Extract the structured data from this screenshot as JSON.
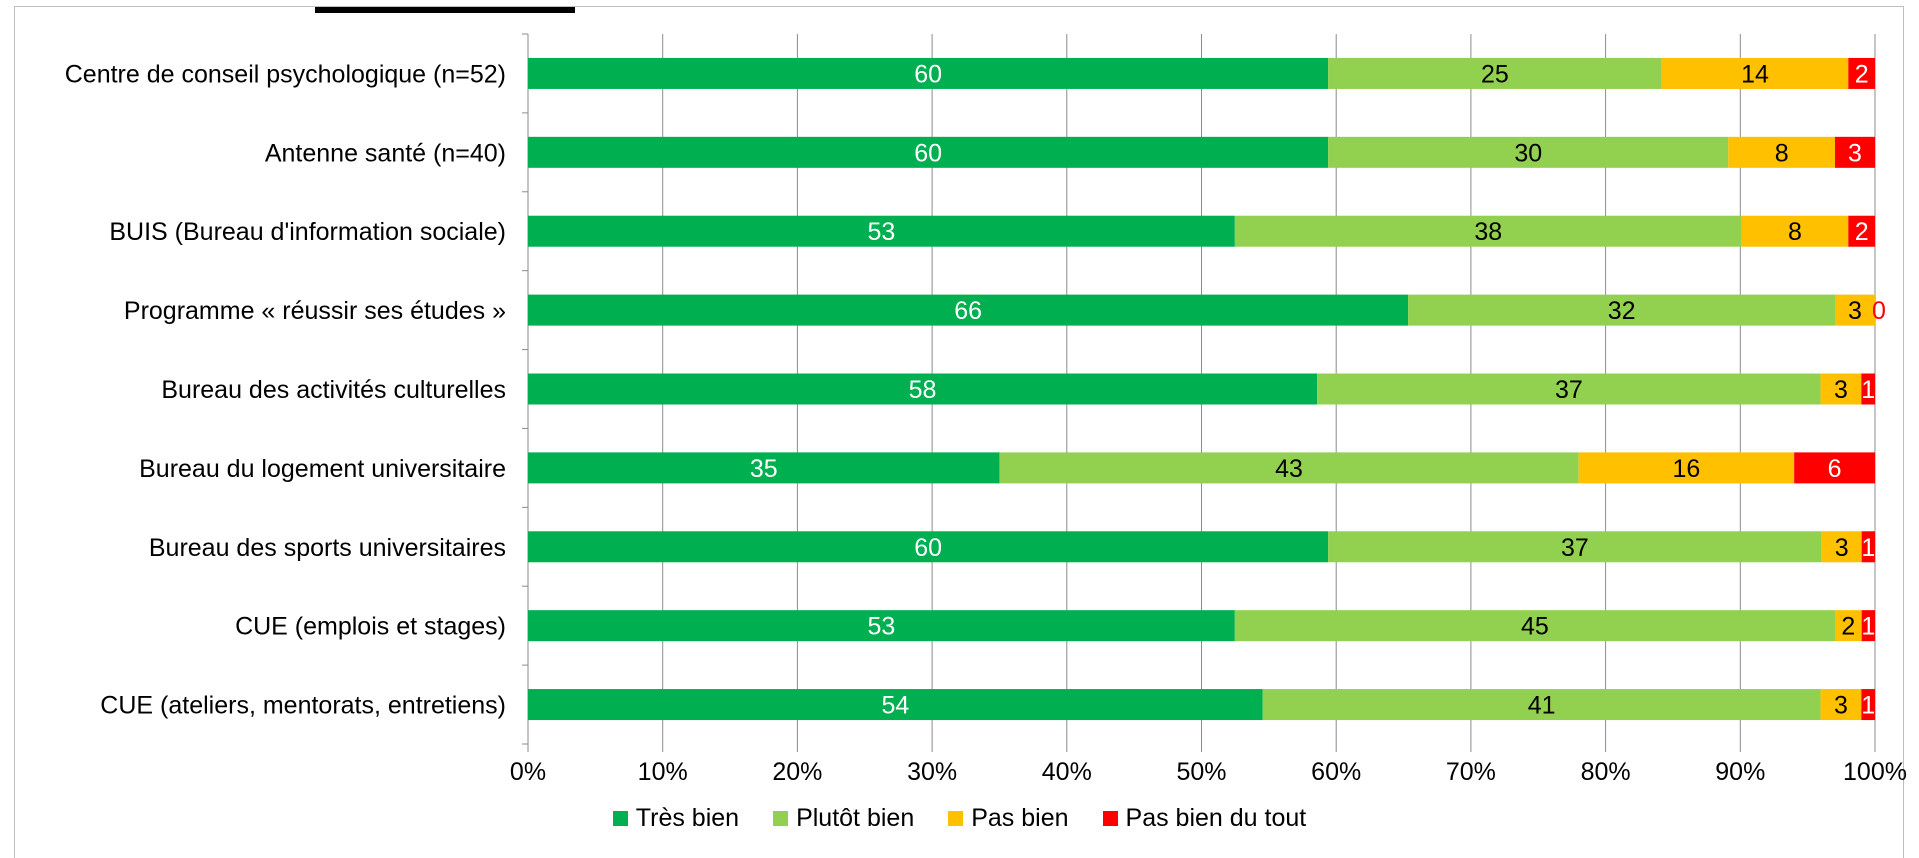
{
  "chart_data": {
    "type": "bar",
    "orientation": "horizontal",
    "stacked": true,
    "normalized": true,
    "categories": [
      "Centre de conseil psychologique (n=52)",
      "Antenne santé (n=40)",
      "BUIS (Bureau d'information sociale)",
      "Programme « réussir ses études »",
      "Bureau des activités culturelles",
      "Bureau du logement universitaire",
      "Bureau des sports universitaires",
      "CUE (emplois et stages)",
      "CUE (ateliers, mentorats, entretiens)"
    ],
    "series": [
      {
        "name": "Très bien",
        "color": "#00b050",
        "label_color": "#ffffff",
        "values": [
          60,
          60,
          53,
          66,
          58,
          35,
          60,
          53,
          54
        ],
        "labels": [
          "60",
          "60",
          "53",
          "66",
          "58",
          "35",
          "60",
          "53",
          "54"
        ]
      },
      {
        "name": "Plutôt bien",
        "color": "#92d050",
        "label_color": "#000000",
        "values": [
          25,
          30,
          38,
          32,
          37,
          43,
          37,
          45,
          41
        ],
        "labels": [
          "25",
          "30",
          "38",
          "32",
          "37",
          "43",
          "37",
          "45",
          "41"
        ]
      },
      {
        "name": "Pas bien",
        "color": "#ffc000",
        "label_color": "#000000",
        "values": [
          14,
          8,
          8,
          3,
          3,
          16,
          3,
          2,
          3
        ],
        "labels": [
          "14",
          "8",
          "8",
          "3",
          "3",
          "16",
          "3",
          "2",
          "3"
        ]
      },
      {
        "name": "Pas bien du tout",
        "color": "#ff0000",
        "label_color": "#ffffff",
        "values": [
          2,
          3,
          2,
          0,
          1,
          6,
          1,
          1,
          1
        ],
        "labels": [
          "2",
          "3",
          "2",
          "0",
          "1",
          "6",
          "1",
          "1",
          "1"
        ]
      }
    ],
    "xlim": [
      0,
      100
    ],
    "x_ticks": [
      "0%",
      "10%",
      "20%",
      "30%",
      "40%",
      "50%",
      "60%",
      "70%",
      "80%",
      "90%",
      "100%"
    ],
    "grid": true,
    "legend_position": "bottom"
  }
}
